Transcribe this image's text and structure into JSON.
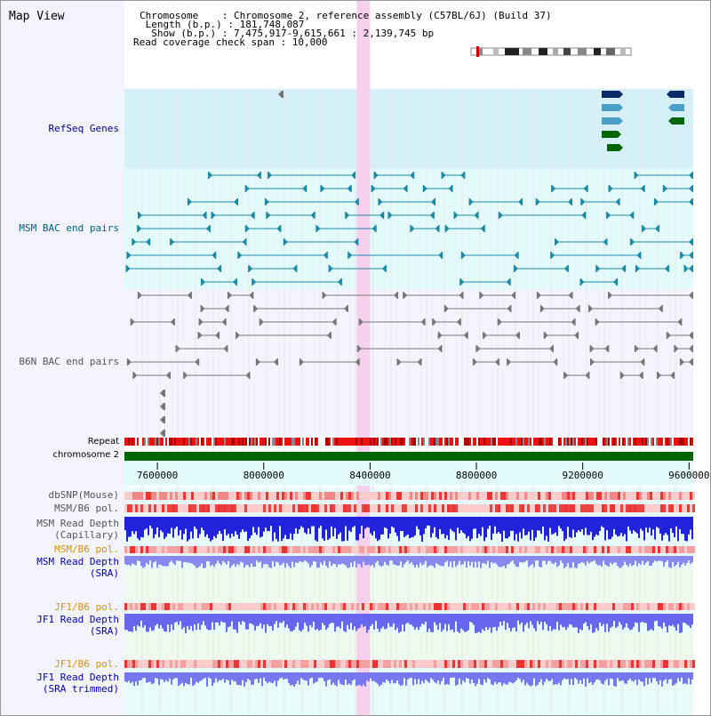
{
  "header": {
    "title": "Map View",
    "chromosome_line": "Chromosome    : Chromosome 2, reference assembly (C57BL/6J) (Build 37)",
    "length_line": " Length (b.p.) : 181,748,087",
    "show_line": "  Show (b.p.) : 7,475,917-9,615,661 : 2,139,745 bp",
    "coverage_line": "Read coverage check span : 10,000"
  },
  "tracks": {
    "refseq_label": "RefSeq Genes",
    "msm_bac_label": "MSM BAC end pairs",
    "b6n_bac_label": "B6N BAC end pairs",
    "repeat_label": "Repeat",
    "chromosome_label": "chromosome 2",
    "dbsnp_label": "dbSNP(Mouse)",
    "msm_b6_pol_label_1": "MSM/B6 pol.",
    "msm_read_depth_cap_label_1": "MSM Read Depth",
    "msm_read_depth_cap_label_2": "(Capillary)",
    "msm_b6_pol_label_2": "MSM/B6 pol.",
    "msm_read_depth_sra_label_1": "MSM Read Depth",
    "msm_read_depth_sra_label_2": "(SRA)",
    "jf1_b6_pol_label_1": "JF1/B6 pol.",
    "jf1_read_depth_sra_label_1": "JF1 Read Depth",
    "jf1_read_depth_sra_label_2": "(SRA)",
    "jf1_b6_pol_label_2": "JF1/B6 pol.",
    "jf1_read_depth_trim_label_1": "JF1 Read Depth",
    "jf1_read_depth_trim_label_2": "(SRA trimmed)"
  },
  "axis": {
    "ticks": [
      7600000,
      8000000,
      8400000,
      8800000,
      9200000,
      9600000
    ],
    "tick_labels": [
      "7600000",
      "8000000",
      "8400000",
      "8800000",
      "9200000",
      "9600000"
    ],
    "range": [
      7475917,
      9615661
    ]
  },
  "highlight_range": [
    8350000,
    8400000
  ],
  "colors": {
    "title": "#000000",
    "refseq_label": "#00008b",
    "msm_label": "#006080",
    "b6n_label": "#555555",
    "orange_label": "#e09000",
    "blue_label": "#0000aa",
    "refseq_bg": "#d6f0fa",
    "msm_bg": "#e4fbfb",
    "highlight": "#f7d0ee",
    "chromosome_bar": "#006400"
  }
}
